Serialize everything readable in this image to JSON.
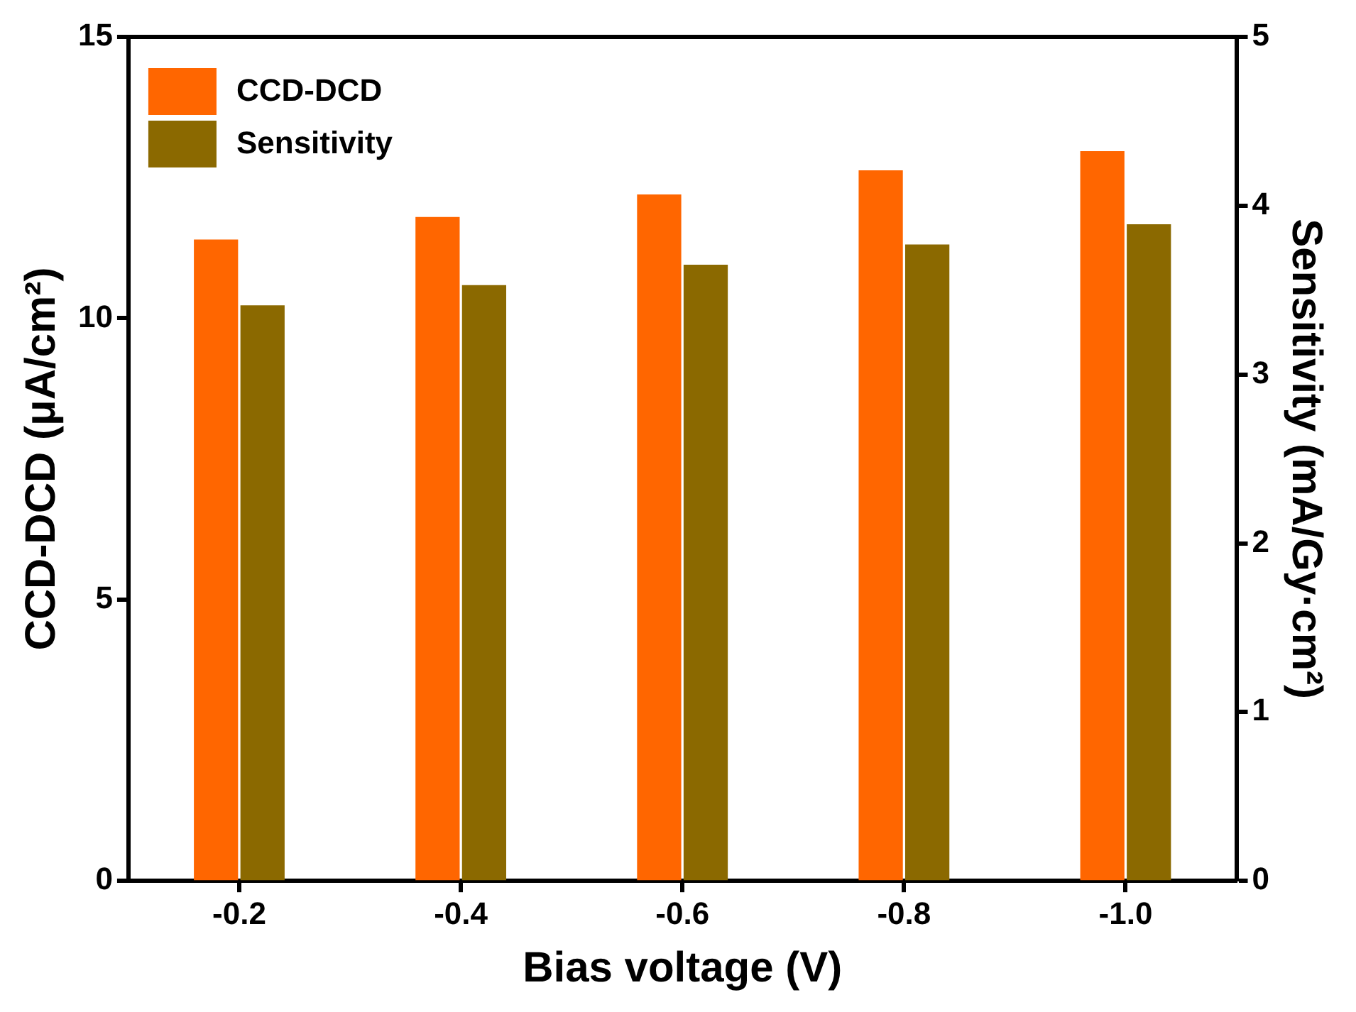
{
  "chart_data": {
    "type": "bar",
    "xlabel": "Bias voltage (V)",
    "ylabel": "CCD-DCD (μA/cm²)",
    "y2label": "Sensitivity (mA/Gy·cm²)",
    "categories": [
      "-0.2",
      "-0.4",
      "-0.6",
      "-0.8",
      "-1.0"
    ],
    "series": [
      {
        "name": "CCD-DCD",
        "color": "#ff6600",
        "values": [
          11.4,
          11.8,
          12.2,
          12.63,
          12.97
        ]
      },
      {
        "name": "Sensitivity",
        "color": "#8b6900",
        "axis": "y2",
        "values": [
          3.41,
          3.53,
          3.65,
          3.77,
          3.89
        ]
      }
    ],
    "ylim": [
      0,
      15
    ],
    "yticks": [
      0,
      5,
      10,
      15
    ],
    "y2lim": [
      0,
      5
    ],
    "y2ticks": [
      0,
      1,
      2,
      3,
      4,
      5
    ],
    "grid": false,
    "legend": "top left"
  }
}
